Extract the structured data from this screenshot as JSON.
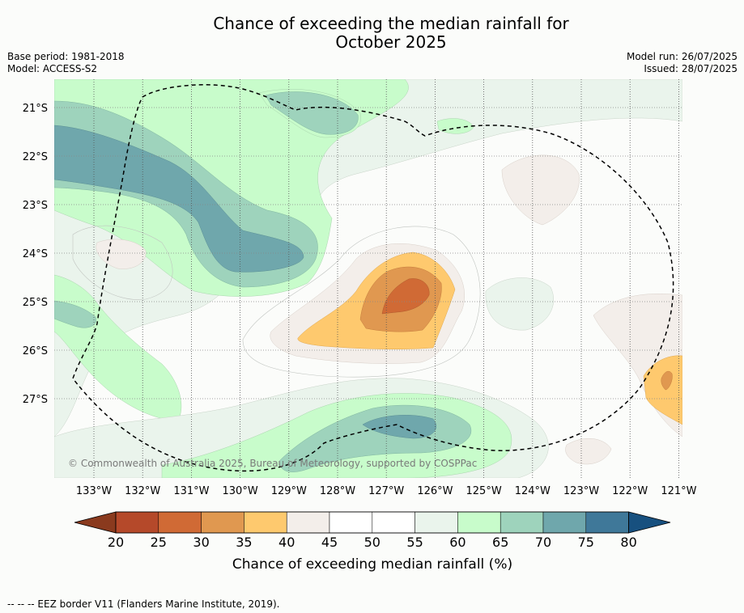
{
  "title_line1": "Chance of exceeding the median rainfall for",
  "title_line2": "October 2025",
  "meta": {
    "base_period": "Base period: 1981-2018",
    "model": "Model: ACCESS-S2",
    "model_run": "Model run: 26/07/2025",
    "issued": "Issued: 28/07/2025"
  },
  "map": {
    "lat_labels": [
      "21°S",
      "22°S",
      "23°S",
      "24°S",
      "25°S",
      "26°S",
      "27°S"
    ],
    "lon_labels": [
      "133°W",
      "132°W",
      "131°W",
      "130°W",
      "129°W",
      "128°W",
      "127°W",
      "126°W",
      "125°W",
      "124°W",
      "123°W",
      "122°W",
      "121°W"
    ],
    "copyright": "© Commonwealth of Australia 2025, Bureau of Meteorology, supported by COSPPac",
    "eez_line_style": "dashed"
  },
  "colorbar": {
    "label": "Chance of exceeding median rainfall (%)",
    "ticks": [
      "20",
      "25",
      "30",
      "35",
      "40",
      "45",
      "50",
      "55",
      "60",
      "65",
      "70",
      "75",
      "80"
    ],
    "colors": [
      "#8a3a1e",
      "#b5492a",
      "#d06a35",
      "#e09850",
      "#fec96e",
      "#f3eeea",
      "#ffffff",
      "#ffffff",
      "#eaf4ec",
      "#c8fccb",
      "#9ed3bc",
      "#6fa7ac",
      "#3f7899",
      "#17507f"
    ]
  },
  "footer": "--  --  -- EEZ border V11 (Flanders Marine Institute, 2019)."
}
